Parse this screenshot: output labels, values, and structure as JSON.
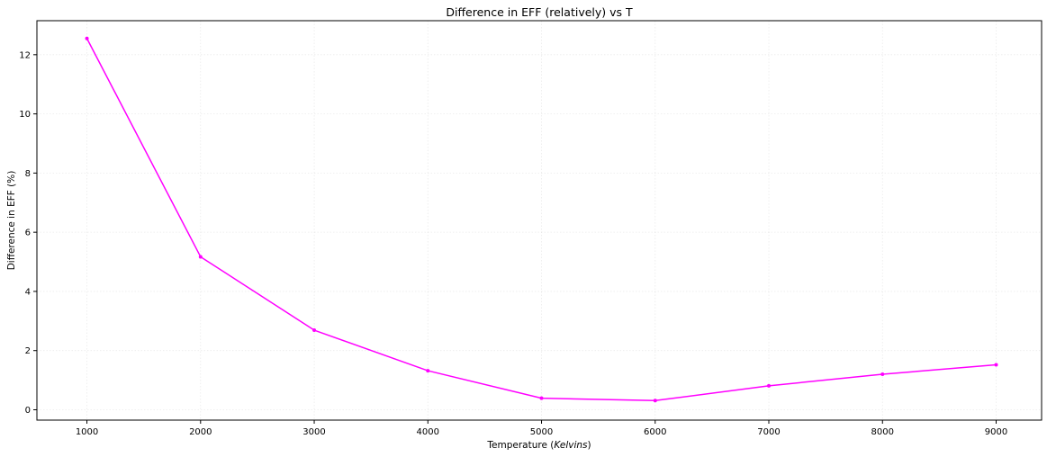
{
  "chart_data": {
    "type": "line",
    "title": "Difference in EFF (relatively) vs T",
    "xlabel_prefix": "Temperature (",
    "xlabel_unit": "Kelvins",
    "xlabel_suffix": ")",
    "ylabel": "Difference in EFF (%)",
    "xlim": [
      560,
      9400
    ],
    "ylim": [
      -0.35,
      13.15
    ],
    "x_ticks": [
      1000,
      2000,
      3000,
      4000,
      5000,
      6000,
      7000,
      8000,
      9000
    ],
    "y_ticks": [
      0,
      2,
      4,
      6,
      8,
      10,
      12
    ],
    "grid": true,
    "series": [
      {
        "color": "#ff00ff",
        "marker": "point",
        "x": [
          1000,
          2000,
          3000,
          4000,
          5000,
          6000,
          7000,
          8000,
          9000
        ],
        "y": [
          12.55,
          5.17,
          2.69,
          1.32,
          0.39,
          0.31,
          0.81,
          1.2,
          1.52
        ]
      }
    ]
  }
}
